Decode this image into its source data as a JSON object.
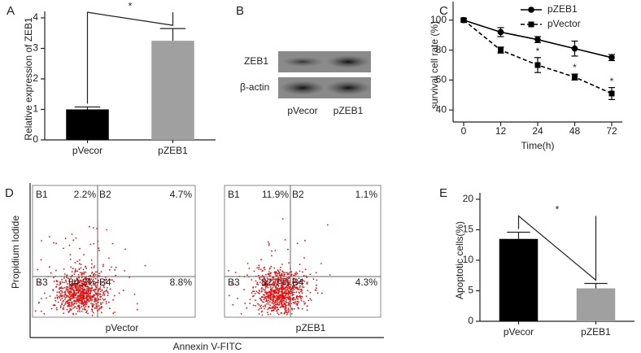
{
  "chart_data": [
    {
      "panel": "A",
      "type": "bar",
      "categories": [
        "pVecor",
        "pZEB1"
      ],
      "values": [
        1.0,
        3.25
      ],
      "errors": [
        0.08,
        0.4
      ],
      "colors": [
        "#000000",
        "#a0a0a0"
      ],
      "y_label": "Relative expression of ZEB1",
      "ylim": [
        0,
        4
      ],
      "yticks": [
        0,
        1,
        2,
        3,
        4
      ],
      "significance": "*"
    },
    {
      "panel": "C",
      "type": "line",
      "x_label": "Time(h)",
      "y_label": "survival cell rate (%)",
      "categories": [
        "0",
        "12",
        "24",
        "48",
        "72"
      ],
      "series": [
        {
          "name": "pZEB1",
          "color": "#000000",
          "marker": "circle",
          "dashed": false,
          "values": [
            100,
            92,
            87,
            81,
            75
          ],
          "errors": [
            1,
            3,
            2,
            5,
            2
          ]
        },
        {
          "name": "pVector",
          "color": "#000000",
          "marker": "square",
          "dashed": true,
          "values": [
            100,
            80,
            70,
            62,
            51
          ],
          "errors": [
            1,
            2,
            5,
            2,
            4
          ],
          "annotations": [
            null,
            null,
            "*",
            "*",
            "*"
          ]
        }
      ],
      "ylim": [
        32,
        108
      ],
      "yticks": [
        40,
        60,
        80,
        100
      ],
      "legend": "upper right"
    },
    {
      "panel": "E",
      "type": "bar",
      "categories": [
        "pVecor",
        "pZEB1"
      ],
      "values": [
        13.5,
        5.4
      ],
      "errors": [
        1.1,
        0.8
      ],
      "colors": [
        "#000000",
        "#a0a0a0"
      ],
      "y_label": "Apoptotic cells(%)",
      "ylim": [
        0,
        20
      ],
      "yticks": [
        0,
        5,
        10,
        15,
        20
      ],
      "significance": "*"
    }
  ],
  "blot": {
    "panel": "B",
    "row_labels": [
      "ZEB1",
      "β-actin"
    ],
    "lane_labels": [
      "pVecor",
      "pZEB1"
    ]
  },
  "flow": {
    "panel": "D",
    "x_label": "Annexin V-FITC",
    "y_label": "Propidium Iodide",
    "plots": [
      {
        "name": "pVector",
        "quadrants": [
          {
            "label": "B1",
            "value": "2.2%"
          },
          {
            "label": "B2",
            "value": "4.7%"
          },
          {
            "label": "B3",
            "value": "84.3%"
          },
          {
            "label": "B4",
            "value": "8.8%"
          }
        ]
      },
      {
        "name": "pZEB1",
        "quadrants": [
          {
            "label": "B1",
            "value": "11.9%"
          },
          {
            "label": "B2",
            "value": "1.1%"
          },
          {
            "label": "B3",
            "value": "82.7%"
          },
          {
            "label": "B4",
            "value": "4.3%"
          }
        ]
      }
    ]
  }
}
